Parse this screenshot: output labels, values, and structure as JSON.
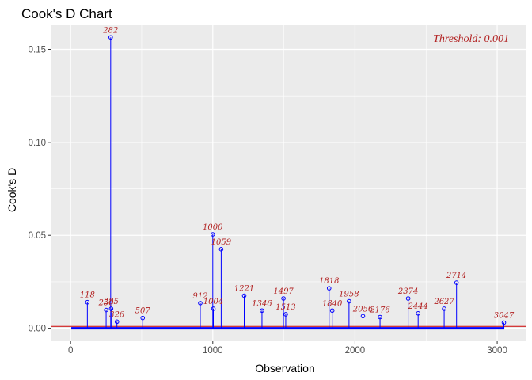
{
  "chart_data": {
    "type": "scatter",
    "title": "Cook's D Chart",
    "xlabel": "Observation",
    "ylabel": "Cook's D",
    "xlim": [
      -140,
      3200
    ],
    "ylim": [
      -0.007,
      0.163
    ],
    "x_ticks": [
      0,
      1000,
      2000,
      3000
    ],
    "y_ticks": [
      0.0,
      0.05,
      0.1,
      0.15
    ],
    "y_tick_labels": [
      "0.00",
      "0.05",
      "0.10",
      "0.15"
    ],
    "x_tick_labels": [
      "0",
      "1000",
      "2000",
      "3000"
    ],
    "grid": true,
    "threshold": {
      "value": 0.001,
      "label": "Threshold: 0.001"
    },
    "point_color": "#0000ff",
    "threshold_color": "#cc0000",
    "label_color": "#b22222",
    "panel_color": "#ebebeb",
    "labeled_points": [
      {
        "obs": 282,
        "value": 0.1565,
        "label": "282"
      },
      {
        "obs": 1000,
        "value": 0.0505,
        "label": "1000"
      },
      {
        "obs": 1059,
        "value": 0.0425,
        "label": "1059"
      },
      {
        "obs": 2714,
        "value": 0.0245,
        "label": "2714"
      },
      {
        "obs": 1818,
        "value": 0.0215,
        "label": "1818"
      },
      {
        "obs": 1221,
        "value": 0.0175,
        "label": "1221"
      },
      {
        "obs": 1497,
        "value": 0.016,
        "label": "1497"
      },
      {
        "obs": 2374,
        "value": 0.016,
        "label": "2374"
      },
      {
        "obs": 1958,
        "value": 0.0145,
        "label": "1958"
      },
      {
        "obs": 118,
        "value": 0.014,
        "label": "118"
      },
      {
        "obs": 912,
        "value": 0.0135,
        "label": "912"
      },
      {
        "obs": 2627,
        "value": 0.0105,
        "label": "2627"
      },
      {
        "obs": 1004,
        "value": 0.0105,
        "label": "1004"
      },
      {
        "obs": 1346,
        "value": 0.0095,
        "label": "1346"
      },
      {
        "obs": 1840,
        "value": 0.0095,
        "label": "1840"
      },
      {
        "obs": 2444,
        "value": 0.008,
        "label": "2444"
      },
      {
        "obs": 2176,
        "value": 0.006,
        "label": "2176"
      },
      {
        "obs": 1513,
        "value": 0.0075,
        "label": "1513"
      },
      {
        "obs": 2056,
        "value": 0.0065,
        "label": "2056"
      },
      {
        "obs": 285,
        "value": 0.0105,
        "label": "285"
      },
      {
        "obs": 250,
        "value": 0.0098,
        "label": "250"
      },
      {
        "obs": 326,
        "value": 0.0035,
        "label": "326"
      },
      {
        "obs": 507,
        "value": 0.0055,
        "label": "507"
      },
      {
        "obs": 3047,
        "value": 0.003,
        "label": "3047"
      }
    ]
  }
}
